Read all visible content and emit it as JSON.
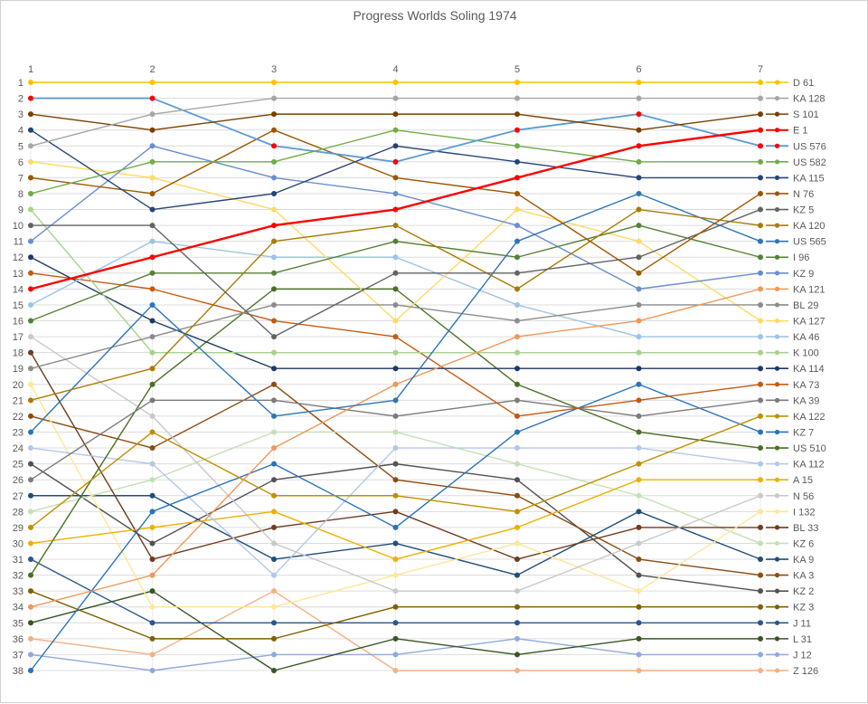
{
  "chart_data": {
    "type": "line",
    "subtype": "bump-chart",
    "title": "Progress Worlds Soling 1974",
    "xlabel": "",
    "ylabel": "",
    "x_categories": [
      "1",
      "2",
      "3",
      "4",
      "5",
      "6",
      "7"
    ],
    "y_axis": {
      "min": 1,
      "max": 38,
      "inverted": true,
      "tick_step": 1
    },
    "grid": true,
    "legend_position": "right",
    "axis_text_color": "#595959",
    "gridline_color": "#dcdcdc",
    "column_guide_color": "#ededed",
    "series": [
      {
        "name": "D 61",
        "color": "#FFC000",
        "pos": [
          1,
          1,
          1,
          1,
          1,
          1,
          1
        ]
      },
      {
        "name": "KA 128",
        "color": "#A6A6A6",
        "pos": [
          5,
          3,
          2,
          2,
          2,
          2,
          2
        ]
      },
      {
        "name": "S 101",
        "color": "#7B3F00",
        "pos": [
          3,
          4,
          3,
          3,
          3,
          4,
          3
        ]
      },
      {
        "name": "E 1",
        "color": "#FF0000",
        "w": 2.4,
        "pos": [
          14,
          12,
          10,
          9,
          7,
          5,
          4
        ]
      },
      {
        "name": "US 576",
        "color": "#5B9BD5",
        "marker": "#FF0000",
        "w": 1.8,
        "pos": [
          2,
          2,
          5,
          6,
          4,
          3,
          5
        ]
      },
      {
        "name": "US 582",
        "color": "#70AD47",
        "pos": [
          8,
          6,
          6,
          4,
          5,
          6,
          6
        ]
      },
      {
        "name": "KA 115",
        "color": "#264478",
        "pos": [
          4,
          9,
          8,
          5,
          6,
          7,
          7
        ]
      },
      {
        "name": "N 76",
        "color": "#9C5700",
        "pos": [
          7,
          8,
          4,
          7,
          8,
          13,
          8
        ]
      },
      {
        "name": "KZ 5",
        "color": "#636363",
        "pos": [
          10,
          10,
          17,
          13,
          13,
          12,
          9
        ]
      },
      {
        "name": "KA 120",
        "color": "#A87B00",
        "pos": [
          21,
          19,
          11,
          10,
          14,
          9,
          10
        ]
      },
      {
        "name": "US 565",
        "color": "#2E75B6",
        "pos": [
          23,
          15,
          22,
          21,
          11,
          8,
          11
        ]
      },
      {
        "name": "I 96",
        "color": "#548235",
        "pos": [
          16,
          13,
          13,
          11,
          12,
          10,
          12
        ]
      },
      {
        "name": "KZ 9",
        "color": "#698ED0",
        "pos": [
          11,
          5,
          7,
          8,
          10,
          14,
          13
        ]
      },
      {
        "name": "KA 121",
        "color": "#F1975A",
        "pos": [
          34,
          32,
          24,
          20,
          17,
          16,
          14
        ]
      },
      {
        "name": "BL 29",
        "color": "#8C8C8C",
        "pos": [
          19,
          17,
          15,
          15,
          16,
          15,
          15
        ]
      },
      {
        "name": "KA 127",
        "color": "#FFD966",
        "pos": [
          6,
          7,
          9,
          16,
          9,
          11,
          16
        ]
      },
      {
        "name": "KA 46",
        "color": "#9DC3E6",
        "pos": [
          15,
          11,
          12,
          12,
          15,
          17,
          17
        ]
      },
      {
        "name": "K 100",
        "color": "#A9D18E",
        "pos": [
          9,
          18,
          18,
          18,
          18,
          18,
          18
        ]
      },
      {
        "name": "KA 114",
        "color": "#203864",
        "pos": [
          12,
          16,
          19,
          19,
          19,
          19,
          19
        ]
      },
      {
        "name": "KA 73",
        "color": "#C55A11",
        "pos": [
          13,
          14,
          16,
          17,
          22,
          21,
          20
        ]
      },
      {
        "name": "KA 39",
        "color": "#7B7B7B",
        "pos": [
          26,
          21,
          21,
          22,
          21,
          22,
          21
        ]
      },
      {
        "name": "KA 122",
        "color": "#BF9000",
        "pos": [
          29,
          23,
          27,
          27,
          28,
          25,
          22
        ]
      },
      {
        "name": "KZ 7",
        "color": "#2873B9",
        "pos": [
          38,
          28,
          25,
          29,
          23,
          20,
          23
        ]
      },
      {
        "name": "US 510",
        "color": "#4A7023",
        "pos": [
          32,
          20,
          14,
          14,
          20,
          23,
          24
        ]
      },
      {
        "name": "KA 112",
        "color": "#B4C7E7",
        "pos": [
          24,
          25,
          32,
          24,
          24,
          24,
          25
        ]
      },
      {
        "name": "A 15",
        "color": "#EDB000",
        "pos": [
          30,
          29,
          28,
          31,
          29,
          26,
          26
        ]
      },
      {
        "name": "N 56",
        "color": "#C9C9C9",
        "pos": [
          17,
          22,
          30,
          33,
          33,
          30,
          27
        ]
      },
      {
        "name": "I 132",
        "color": "#FFE699",
        "pos": [
          20,
          34,
          34,
          32,
          30,
          33,
          28
        ]
      },
      {
        "name": "BL 33",
        "color": "#6E3B1E",
        "pos": [
          18,
          31,
          29,
          28,
          31,
          29,
          29
        ]
      },
      {
        "name": "KZ 6",
        "color": "#C5E0B4",
        "pos": [
          28,
          26,
          23,
          23,
          25,
          27,
          30
        ]
      },
      {
        "name": "KA 9",
        "color": "#1F4E79",
        "pos": [
          27,
          27,
          31,
          30,
          32,
          28,
          31
        ]
      },
      {
        "name": "KA 3",
        "color": "#8C4B10",
        "pos": [
          22,
          24,
          20,
          26,
          27,
          31,
          32
        ]
      },
      {
        "name": "KZ 2",
        "color": "#525252",
        "pos": [
          25,
          30,
          26,
          25,
          26,
          32,
          33
        ]
      },
      {
        "name": "KZ 3",
        "color": "#7F6000",
        "pos": [
          33,
          36,
          36,
          34,
          34,
          34,
          34
        ]
      },
      {
        "name": "J 11",
        "color": "#29578C",
        "pos": [
          31,
          35,
          35,
          35,
          35,
          35,
          35
        ]
      },
      {
        "name": "L 31",
        "color": "#375623",
        "pos": [
          35,
          33,
          38,
          36,
          37,
          36,
          36
        ]
      },
      {
        "name": "J 12",
        "color": "#8FAADC",
        "pos": [
          37,
          38,
          37,
          37,
          36,
          37,
          37
        ]
      },
      {
        "name": "Z 126",
        "color": "#F4B183",
        "pos": [
          36,
          37,
          33,
          38,
          38,
          38,
          38
        ]
      }
    ]
  }
}
